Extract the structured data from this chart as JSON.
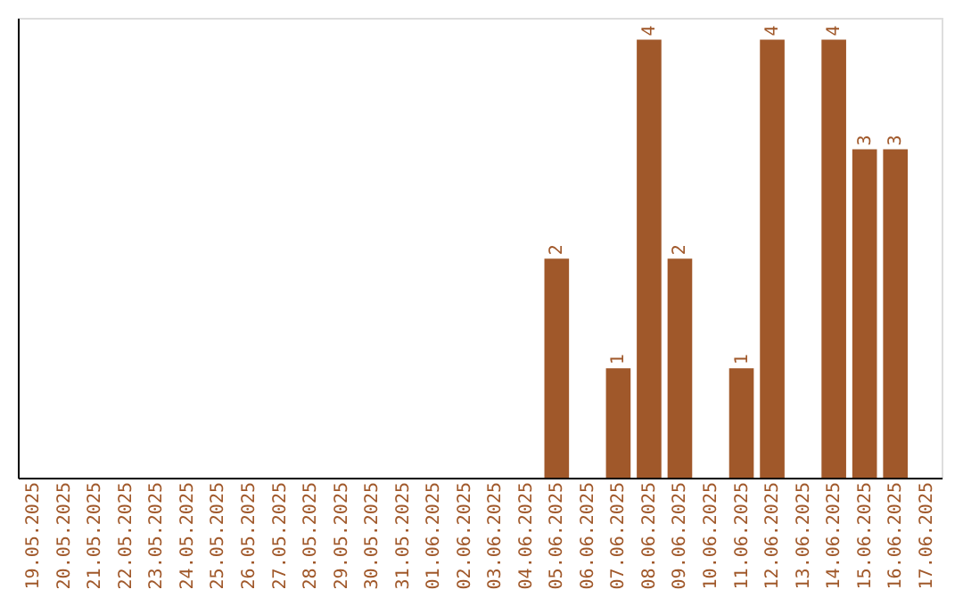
{
  "chart_data": {
    "type": "bar",
    "categories": [
      "19.05.2025",
      "20.05.2025",
      "21.05.2025",
      "22.05.2025",
      "23.05.2025",
      "24.05.2025",
      "25.05.2025",
      "26.05.2025",
      "27.05.2025",
      "28.05.2025",
      "29.05.2025",
      "30.05.2025",
      "31.05.2025",
      "01.06.2025",
      "02.06.2025",
      "03.06.2025",
      "04.06.2025",
      "05.06.2025",
      "06.06.2025",
      "07.06.2025",
      "08.06.2025",
      "09.06.2025",
      "10.06.2025",
      "11.06.2025",
      "12.06.2025",
      "13.06.2025",
      "14.06.2025",
      "15.06.2025",
      "16.06.2025",
      "17.06.2025"
    ],
    "values": [
      null,
      null,
      null,
      null,
      null,
      null,
      null,
      null,
      null,
      null,
      null,
      null,
      null,
      null,
      null,
      null,
      null,
      2,
      null,
      1,
      4,
      2,
      null,
      1,
      4,
      null,
      4,
      3,
      3,
      null
    ],
    "value_labels": [
      null,
      null,
      null,
      null,
      null,
      null,
      null,
      null,
      null,
      null,
      null,
      null,
      null,
      null,
      null,
      null,
      null,
      "2",
      null,
      "1",
      "4",
      "2",
      null,
      "1",
      "4",
      null,
      "4",
      "3",
      "3",
      null
    ],
    "color": "#a0582a",
    "ylim": [
      0,
      4.2
    ],
    "tick_labels": "x",
    "grid": false
  }
}
